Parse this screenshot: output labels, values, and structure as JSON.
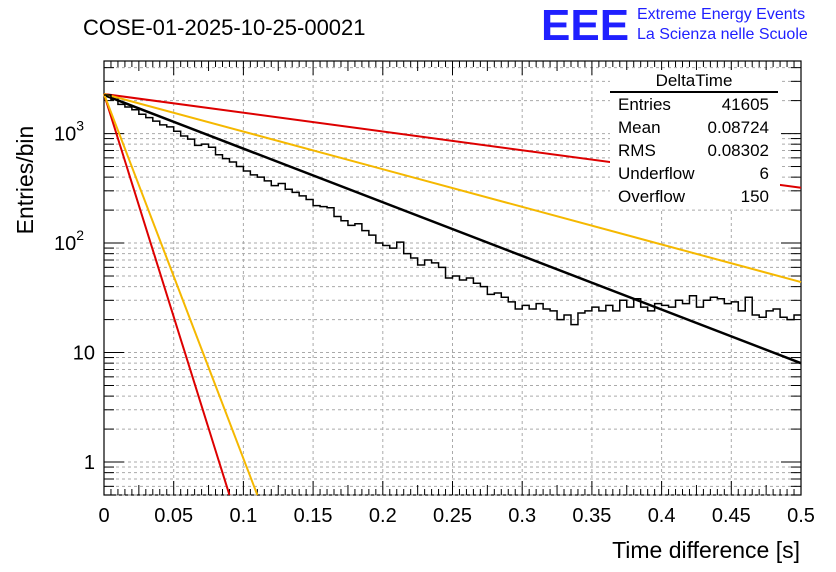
{
  "chart_data": {
    "type": "histogram",
    "title": "COSE-01-2025-10-25-00021",
    "xlabel": "Time difference [s]",
    "ylabel": "Entries/bin",
    "xlim": [
      0,
      0.5
    ],
    "ylim": [
      0.5,
      4600
    ],
    "yscale": "log",
    "grid": true,
    "x_tick_labels": [
      "0",
      "0.05",
      "0.1",
      "0.15",
      "0.2",
      "0.25",
      "0.3",
      "0.35",
      "0.4",
      "0.45",
      "0.5"
    ],
    "y_tick_labels": [
      {
        "base": "1",
        "exp": ""
      },
      {
        "base": "10",
        "exp": ""
      },
      {
        "base": "10",
        "exp": "2"
      },
      {
        "base": "10",
        "exp": "3"
      }
    ],
    "histogram": {
      "name": "DeltaTime",
      "bin_width": 0.005,
      "values": [
        2250,
        2050,
        1850,
        1750,
        1650,
        1500,
        1400,
        1300,
        1200,
        1150,
        1050,
        950,
        890,
        780,
        800,
        750,
        640,
        590,
        550,
        500,
        455,
        420,
        400,
        370,
        335,
        350,
        310,
        290,
        270,
        250,
        220,
        215,
        210,
        175,
        160,
        145,
        150,
        130,
        118,
        100,
        95,
        90,
        102,
        80,
        73,
        63,
        70,
        66,
        60,
        48,
        50,
        46,
        48,
        43,
        40,
        34,
        35,
        32,
        29,
        25,
        27,
        25,
        28,
        25,
        24,
        20,
        22,
        18,
        23,
        24,
        26,
        24,
        27,
        24,
        30,
        26,
        31,
        26,
        24,
        28,
        27,
        26,
        30,
        28,
        33,
        26,
        30,
        32,
        31,
        28,
        29,
        24,
        32,
        22,
        21,
        24,
        25,
        21,
        20,
        22
      ]
    },
    "series": [
      {
        "name": "fit",
        "color": "#000000",
        "x": [
          0,
          0.5
        ],
        "y": [
          2250,
          8
        ]
      },
      {
        "name": "reference-red-shallow",
        "color": "#dd0000",
        "x": [
          0,
          0.5
        ],
        "y": [
          2300,
          320
        ]
      },
      {
        "name": "reference-orange-shallow",
        "color": "#f5b800",
        "x": [
          0,
          0.5
        ],
        "y": [
          2300,
          44
        ]
      },
      {
        "name": "reference-red-steep",
        "color": "#dd0000",
        "x": [
          0,
          0.09
        ],
        "y": [
          2300,
          0.5
        ]
      },
      {
        "name": "reference-orange-steep",
        "color": "#f5b800",
        "x": [
          0,
          0.11
        ],
        "y": [
          2300,
          0.5
        ]
      }
    ],
    "stats_box": {
      "title": "DeltaTime",
      "rows": [
        {
          "label": "Entries",
          "value": "41605"
        },
        {
          "label": "Mean",
          "value": "0.08724"
        },
        {
          "label": "RMS",
          "value": "0.08302"
        },
        {
          "label": "Underflow",
          "value": "6"
        },
        {
          "label": "Overflow",
          "value": "150"
        }
      ]
    }
  },
  "logo": {
    "acronym": "EEE",
    "line1": "Extreme Energy Events",
    "line2": "La Scienza nelle Scuole",
    "color": "#1f1fff"
  }
}
